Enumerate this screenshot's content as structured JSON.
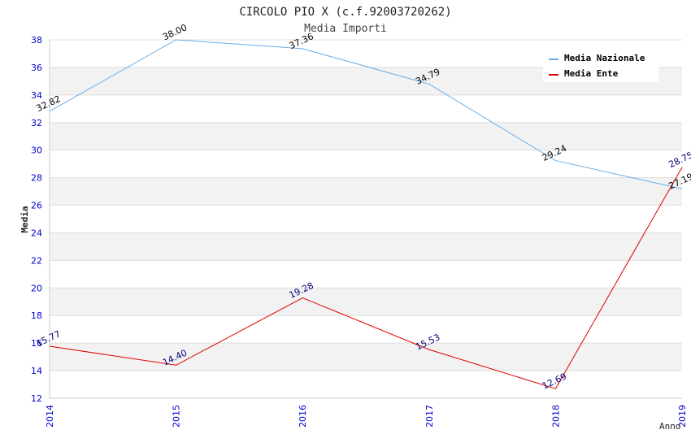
{
  "chart_data": {
    "type": "line",
    "title": "CIRCOLO PIO X (c.f.92003720262)",
    "subtitle": "Media Importi",
    "xlabel": "Anno",
    "ylabel": "Media",
    "categories": [
      "2014",
      "2015",
      "2016",
      "2017",
      "2018",
      "2019"
    ],
    "y_ticks": [
      "12",
      "14",
      "16",
      "18",
      "20",
      "22",
      "24",
      "26",
      "28",
      "30",
      "32",
      "34",
      "36",
      "38"
    ],
    "ylim": [
      12,
      38
    ],
    "grid": true,
    "legend_position": "top-right",
    "series": [
      {
        "name": "Media Nazionale",
        "color": "#6aaee8",
        "label_color": "#000000",
        "values": [
          32.82,
          38.0,
          37.36,
          34.79,
          29.24,
          27.19
        ],
        "labels": [
          "32.82",
          "38.00",
          "37.36",
          "34.79",
          "29.24",
          "27.19"
        ]
      },
      {
        "name": "Media Ente",
        "color": "#dd0000",
        "label_color": "#00007a",
        "values": [
          15.77,
          14.4,
          19.28,
          15.53,
          12.69,
          28.75
        ],
        "labels": [
          "15.77",
          "14.40",
          "19.28",
          "15.53",
          "12.69",
          "28.75"
        ]
      }
    ]
  },
  "colors": {
    "axis_text": "#0000cc",
    "band": "#f2f2f2",
    "gridline": "#dddddd"
  }
}
